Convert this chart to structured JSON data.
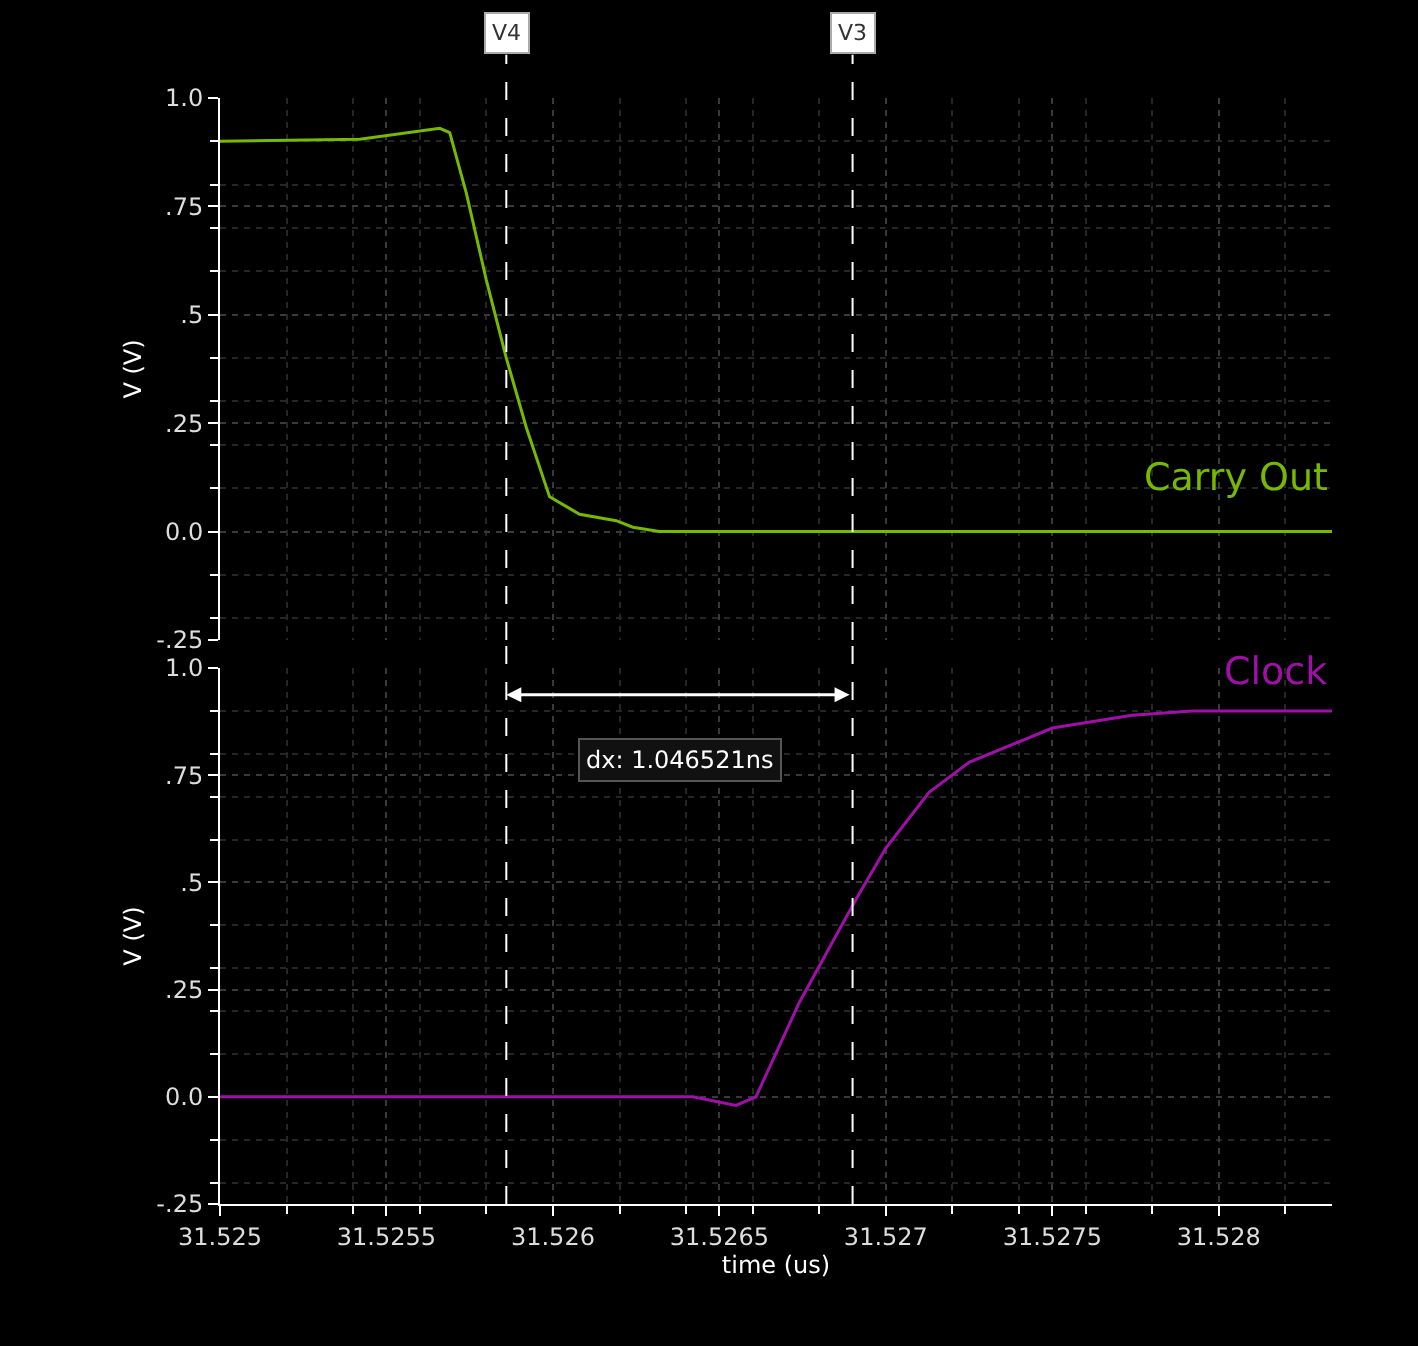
{
  "chart_data": [
    {
      "type": "line",
      "ylabel": "V (V)",
      "xlim": [
        31.525,
        31.52834
      ],
      "xticks": [
        31.525,
        31.5255,
        31.526,
        31.5265,
        31.527,
        31.5275,
        31.528
      ],
      "ylim": [
        -0.25,
        1.0
      ],
      "yticks": [
        {
          "value": 1.0,
          "label": "1.0"
        },
        {
          "value": 0.75,
          "label": ".75"
        },
        {
          "value": 0.5,
          "label": ".5"
        },
        {
          "value": 0.25,
          "label": ".25"
        },
        {
          "value": 0.0,
          "label": "0.0"
        },
        {
          "value": -0.25,
          "label": "-.25"
        }
      ],
      "tick_labels": "y",
      "grid": true,
      "line_style": "solid",
      "series": [
        {
          "name": "Carry Out",
          "color": "#76b900",
          "x": [
            31.525,
            31.52542,
            31.52566,
            31.52569,
            31.52574,
            31.5258,
            31.52586,
            31.52592,
            31.52599,
            31.52608,
            31.52619,
            31.52624,
            31.52632,
            31.52834
          ],
          "values": [
            0.9,
            0.905,
            0.93,
            0.92,
            0.78,
            0.58,
            0.4,
            0.24,
            0.08,
            0.04,
            0.025,
            0.01,
            0.0,
            0.0
          ]
        }
      ],
      "ref_lines": [
        {
          "axis": "x",
          "value": 31.52586,
          "label": "V4",
          "line_style": "dashed",
          "color": "#ffffff"
        },
        {
          "axis": "x",
          "value": 31.5269,
          "label": "V3",
          "line_style": "dashed",
          "color": "#ffffff"
        }
      ]
    },
    {
      "type": "line",
      "ylabel": "V (V)",
      "xlabel": "time (us)",
      "xlim": [
        31.525,
        31.52834
      ],
      "xticks": [
        31.525,
        31.5255,
        31.526,
        31.5265,
        31.527,
        31.5275,
        31.528
      ],
      "ylim": [
        -0.25,
        1.0
      ],
      "yticks": [
        {
          "value": 1.0,
          "label": "1.0"
        },
        {
          "value": 0.75,
          "label": ".75"
        },
        {
          "value": 0.5,
          "label": ".5"
        },
        {
          "value": 0.25,
          "label": ".25"
        },
        {
          "value": 0.0,
          "label": "0.0"
        },
        {
          "value": -0.25,
          "label": "-.25"
        }
      ],
      "grid": true,
      "line_style": "solid",
      "series": [
        {
          "name": "Clock",
          "color": "#a010a8",
          "x": [
            31.525,
            31.52642,
            31.52655,
            31.52661,
            31.52674,
            31.52691,
            31.527,
            31.52713,
            31.52725,
            31.5275,
            31.52774,
            31.52792,
            31.52834
          ],
          "values": [
            0.0,
            0.0,
            -0.02,
            0.0,
            0.22,
            0.46,
            0.58,
            0.71,
            0.78,
            0.86,
            0.89,
            0.9,
            0.9
          ]
        }
      ],
      "ref_lines": [
        {
          "axis": "x",
          "value": 31.52586,
          "line_style": "dashed",
          "color": "#ffffff"
        },
        {
          "axis": "x",
          "value": 31.5269,
          "line_style": "dashed",
          "color": "#ffffff"
        }
      ],
      "annotations": [
        "dx: 1.046521ns"
      ]
    }
  ]
}
